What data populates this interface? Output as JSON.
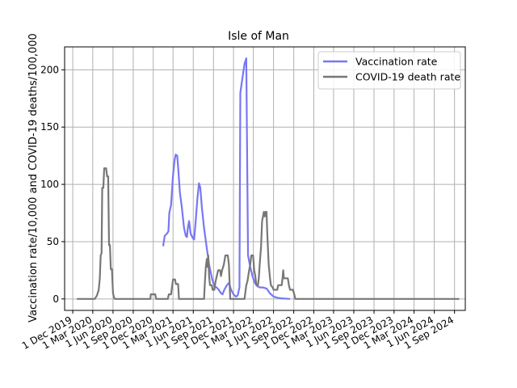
{
  "chart_data": {
    "type": "line",
    "title": "Isle of Man",
    "xlabel": "",
    "ylabel": "Vaccination rate/10,000 and COVID-19 deaths/100,000",
    "x_type": "date",
    "xlim": [
      "2019-10-25",
      "2024-10-20"
    ],
    "ylim": [
      -10,
      220
    ],
    "yticks": [
      0,
      50,
      100,
      150,
      200
    ],
    "xticks": [
      "2019-12-01",
      "2020-03-01",
      "2020-06-01",
      "2020-09-01",
      "2020-12-01",
      "2021-03-01",
      "2021-06-01",
      "2021-09-01",
      "2021-12-01",
      "2022-03-01",
      "2022-06-01",
      "2022-09-01",
      "2022-12-01",
      "2023-03-01",
      "2023-06-01",
      "2023-09-01",
      "2023-12-01",
      "2024-03-01",
      "2024-06-01",
      "2024-09-01"
    ],
    "xtick_labels": [
      "1 Dec 2019",
      "1 Mar 2020",
      "1 Jun 2020",
      "1 Sep 2020",
      "1 Dec 2020",
      "1 Mar 2021",
      "1 Jun 2021",
      "1 Sep 2021",
      "1 Dec 2021",
      "1 Mar 2022",
      "1 Jun 2022",
      "1 Sep 2022",
      "1 Dec 2022",
      "1 Mar 2023",
      "1 Jun 2023",
      "1 Sep 2023",
      "1 Dec 2023",
      "1 Mar 2024",
      "1 Jun 2024",
      "1 Sep 2024"
    ],
    "grid": true,
    "legend_position": "upper right",
    "series": [
      {
        "name": "Vaccination rate",
        "color": "#7777f5",
        "points": [
          [
            "2021-01-15",
            46
          ],
          [
            "2021-01-22",
            55
          ],
          [
            "2021-02-01",
            57
          ],
          [
            "2021-02-08",
            59
          ],
          [
            "2021-02-12",
            75
          ],
          [
            "2021-02-20",
            82
          ],
          [
            "2021-03-01",
            108
          ],
          [
            "2021-03-08",
            121
          ],
          [
            "2021-03-13",
            126
          ],
          [
            "2021-03-20",
            125
          ],
          [
            "2021-03-25",
            113
          ],
          [
            "2021-04-01",
            93
          ],
          [
            "2021-04-10",
            80
          ],
          [
            "2021-04-20",
            62
          ],
          [
            "2021-04-28",
            55
          ],
          [
            "2021-05-03",
            54
          ],
          [
            "2021-05-08",
            63
          ],
          [
            "2021-05-13",
            68
          ],
          [
            "2021-05-20",
            57
          ],
          [
            "2021-05-30",
            53
          ],
          [
            "2021-06-05",
            52
          ],
          [
            "2021-06-12",
            68
          ],
          [
            "2021-06-20",
            88
          ],
          [
            "2021-06-27",
            101
          ],
          [
            "2021-07-03",
            97
          ],
          [
            "2021-07-10",
            80
          ],
          [
            "2021-07-20",
            62
          ],
          [
            "2021-08-01",
            45
          ],
          [
            "2021-08-12",
            30
          ],
          [
            "2021-08-25",
            18
          ],
          [
            "2021-09-05",
            11
          ],
          [
            "2021-09-15",
            10
          ],
          [
            "2021-09-25",
            8
          ],
          [
            "2021-10-05",
            5
          ],
          [
            "2021-10-12",
            4
          ],
          [
            "2021-10-20",
            8
          ],
          [
            "2021-11-01",
            12
          ],
          [
            "2021-11-10",
            14
          ],
          [
            "2021-11-20",
            8
          ],
          [
            "2021-12-01",
            4
          ],
          [
            "2021-12-12",
            2
          ],
          [
            "2021-12-20",
            3
          ],
          [
            "2021-12-28",
            10
          ],
          [
            "2022-01-01",
            180
          ],
          [
            "2022-01-10",
            192
          ],
          [
            "2022-01-20",
            205
          ],
          [
            "2022-01-28",
            210
          ],
          [
            "2022-02-05",
            38
          ],
          [
            "2022-02-15",
            28
          ],
          [
            "2022-02-25",
            20
          ],
          [
            "2022-03-08",
            14
          ],
          [
            "2022-03-20",
            11
          ],
          [
            "2022-04-01",
            10
          ],
          [
            "2022-04-15",
            10
          ],
          [
            "2022-05-01",
            9
          ],
          [
            "2022-05-15",
            5
          ],
          [
            "2022-06-01",
            2
          ],
          [
            "2022-06-20",
            1
          ],
          [
            "2022-07-10",
            0.5
          ],
          [
            "2022-08-01",
            0.2
          ],
          [
            "2022-08-15",
            0
          ]
        ]
      },
      {
        "name": "COVID-19 death rate",
        "color": "#777777",
        "points": [
          [
            "2019-12-20",
            0
          ],
          [
            "2020-03-10",
            0
          ],
          [
            "2020-03-20",
            3
          ],
          [
            "2020-03-28",
            8
          ],
          [
            "2020-04-02",
            18
          ],
          [
            "2020-04-06",
            38
          ],
          [
            "2020-04-10",
            40
          ],
          [
            "2020-04-13",
            97
          ],
          [
            "2020-04-18",
            97
          ],
          [
            "2020-04-22",
            114
          ],
          [
            "2020-05-01",
            114
          ],
          [
            "2020-05-05",
            107
          ],
          [
            "2020-05-10",
            107
          ],
          [
            "2020-05-14",
            47
          ],
          [
            "2020-05-18",
            47
          ],
          [
            "2020-05-22",
            26
          ],
          [
            "2020-05-27",
            26
          ],
          [
            "2020-06-01",
            5
          ],
          [
            "2020-06-06",
            1
          ],
          [
            "2020-06-10",
            0
          ],
          [
            "2020-11-18",
            0
          ],
          [
            "2020-11-20",
            4
          ],
          [
            "2020-12-10",
            4
          ],
          [
            "2020-12-14",
            0
          ],
          [
            "2021-02-05",
            0
          ],
          [
            "2021-02-10",
            4
          ],
          [
            "2021-02-20",
            4
          ],
          [
            "2021-02-24",
            10
          ],
          [
            "2021-03-01",
            17
          ],
          [
            "2021-03-10",
            17
          ],
          [
            "2021-03-14",
            13
          ],
          [
            "2021-03-24",
            13
          ],
          [
            "2021-03-28",
            0
          ],
          [
            "2021-07-20",
            0
          ],
          [
            "2021-07-24",
            15
          ],
          [
            "2021-07-28",
            28
          ],
          [
            "2021-08-02",
            35
          ],
          [
            "2021-08-05",
            28
          ],
          [
            "2021-08-08",
            38
          ],
          [
            "2021-08-12",
            20
          ],
          [
            "2021-08-16",
            12
          ],
          [
            "2021-08-24",
            12
          ],
          [
            "2021-08-28",
            8
          ],
          [
            "2021-09-05",
            8
          ],
          [
            "2021-09-10",
            15
          ],
          [
            "2021-09-16",
            20
          ],
          [
            "2021-09-22",
            25
          ],
          [
            "2021-10-01",
            25
          ],
          [
            "2021-10-05",
            20
          ],
          [
            "2021-10-10",
            25
          ],
          [
            "2021-10-18",
            30
          ],
          [
            "2021-10-25",
            38
          ],
          [
            "2021-11-05",
            38
          ],
          [
            "2021-11-10",
            30
          ],
          [
            "2021-11-16",
            0
          ],
          [
            "2022-01-20",
            0
          ],
          [
            "2022-01-28",
            12
          ],
          [
            "2022-02-02",
            15
          ],
          [
            "2022-02-10",
            25
          ],
          [
            "2022-02-15",
            30
          ],
          [
            "2022-02-20",
            38
          ],
          [
            "2022-02-28",
            38
          ],
          [
            "2022-03-05",
            25
          ],
          [
            "2022-03-10",
            20
          ],
          [
            "2022-03-15",
            12
          ],
          [
            "2022-03-22",
            12
          ],
          [
            "2022-03-26",
            18
          ],
          [
            "2022-03-30",
            30
          ],
          [
            "2022-04-05",
            45
          ],
          [
            "2022-04-10",
            68
          ],
          [
            "2022-04-14",
            72
          ],
          [
            "2022-04-18",
            76
          ],
          [
            "2022-04-22",
            72
          ],
          [
            "2022-04-26",
            76
          ],
          [
            "2022-04-30",
            76
          ],
          [
            "2022-05-04",
            55
          ],
          [
            "2022-05-10",
            30
          ],
          [
            "2022-05-16",
            18
          ],
          [
            "2022-05-20",
            12
          ],
          [
            "2022-05-28",
            10
          ],
          [
            "2022-06-01",
            8
          ],
          [
            "2022-06-18",
            8
          ],
          [
            "2022-06-22",
            12
          ],
          [
            "2022-07-08",
            12
          ],
          [
            "2022-07-12",
            18
          ],
          [
            "2022-07-15",
            25
          ],
          [
            "2022-07-18",
            18
          ],
          [
            "2022-08-05",
            18
          ],
          [
            "2022-08-10",
            12
          ],
          [
            "2022-08-15",
            8
          ],
          [
            "2022-08-28",
            8
          ],
          [
            "2022-09-02",
            5
          ],
          [
            "2022-09-08",
            0
          ],
          [
            "2024-09-22",
            0
          ]
        ]
      }
    ]
  }
}
